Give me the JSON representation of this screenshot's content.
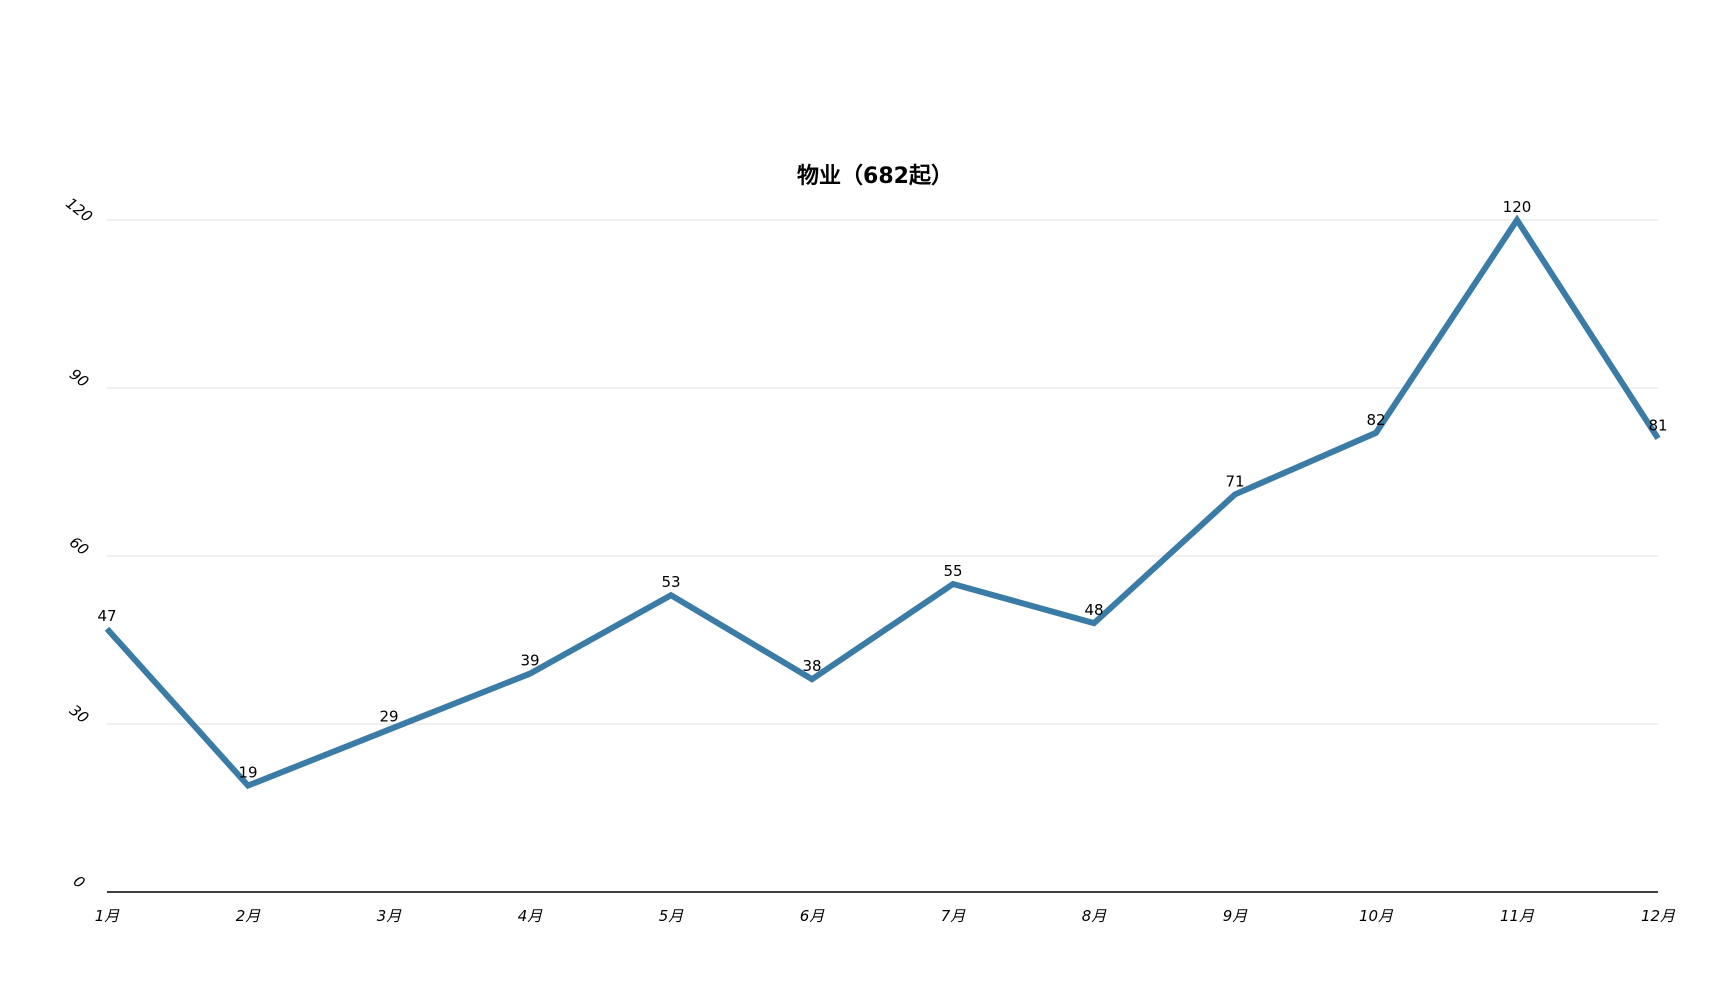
{
  "chart_data": {
    "type": "line",
    "title": "物业（682起）",
    "xlabel": "",
    "ylabel": "",
    "categories": [
      "1月",
      "2月",
      "3月",
      "4月",
      "5月",
      "6月",
      "7月",
      "8月",
      "9月",
      "10月",
      "11月",
      "12月"
    ],
    "series": [
      {
        "values": [
          47,
          19,
          29,
          39,
          53,
          38,
          55,
          48,
          71,
          82,
          120,
          81
        ]
      }
    ],
    "ylim": [
      0,
      120
    ],
    "yticks": [
      0,
      30,
      60,
      90,
      120
    ],
    "grid": true,
    "legend": "none",
    "data_labels": true,
    "colors": {
      "line": "#3a7ca5",
      "grid": "#e2e2e2",
      "axis": "#000000",
      "text": "#000000"
    }
  }
}
